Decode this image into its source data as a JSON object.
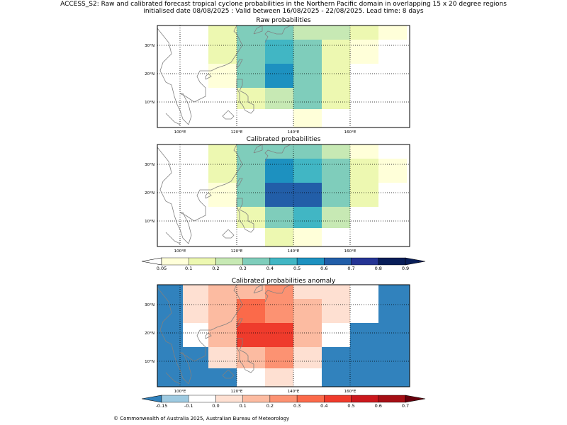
{
  "title_line1": "ACCESS_S2: Raw and calibrated forecast tropical cyclone probabilities in the Northern Pacific domain in overlapping 15 x 20 degree regions",
  "title_line2": "initialised date 08/08/2025 :  Valid between 16/08/2025 - 22/08/2025. Lead time: 8 days",
  "copyright": "© Commonwealth of Australia 2025, Australian Bureau of Meteorology",
  "colors": {
    "coast": "#808080",
    "prob_palette": [
      "#ffffd9",
      "#edf8b1",
      "#c7e9b4",
      "#7fcdbb",
      "#41b6c4",
      "#1d91c0",
      "#225ea8",
      "#253494",
      "#081d58"
    ],
    "prob_under": "#ffffff",
    "anom_palette": [
      "#9ecae1",
      "#ffffff",
      "#fee0d2",
      "#fcbba1",
      "#fc9272",
      "#fb6a4a",
      "#ef3b2c",
      "#cb181d",
      "#a50f15"
    ],
    "anom_under": "#3182bd",
    "anom_over": "#67000d",
    "prob_over": "#081d58"
  },
  "chart_data": [
    {
      "type": "heatmap",
      "title": "Raw probabilities",
      "x_tick_labels": [
        "100°E",
        "120°E",
        "140°E",
        "160°E"
      ],
      "y_tick_labels": [
        "10°N",
        "20°N",
        "30°N"
      ],
      "x_ticks": [
        100,
        120,
        140,
        160
      ],
      "y_ticks": [
        10,
        20,
        30
      ],
      "xlim": [
        92,
        181
      ],
      "ylim": [
        1,
        37
      ],
      "grid": true,
      "x_edges": [
        110,
        120,
        130,
        140,
        150,
        160,
        170,
        180
      ],
      "y_edges": [
        37,
        32,
        23.5,
        15,
        7.5,
        1
      ],
      "values": [
        [
          0.1,
          0.3,
          0.3,
          0.2,
          0.2,
          0.1,
          0.05
        ],
        [
          0.1,
          0.3,
          0.4,
          0.3,
          0.1,
          0.05,
          null
        ],
        [
          0.05,
          0.3,
          0.5,
          0.3,
          0.1,
          null,
          null
        ],
        [
          null,
          0.1,
          0.2,
          0.3,
          0.1,
          null,
          null
        ],
        [
          null,
          null,
          null,
          0.05,
          null,
          null,
          null
        ]
      ]
    },
    {
      "type": "heatmap",
      "title": "Calibrated probabilities",
      "x_tick_labels": [
        "100°E",
        "120°E",
        "140°E",
        "160°E"
      ],
      "y_tick_labels": [
        "10°N",
        "20°N",
        "30°N"
      ],
      "x_ticks": [
        100,
        120,
        140,
        160
      ],
      "y_ticks": [
        10,
        20,
        30
      ],
      "xlim": [
        92,
        181
      ],
      "ylim": [
        1,
        37
      ],
      "grid": true,
      "x_edges": [
        110,
        120,
        130,
        140,
        150,
        160,
        170,
        180
      ],
      "y_edges": [
        37,
        32,
        23.5,
        15,
        7.5,
        1
      ],
      "values": [
        [
          0.1,
          0.3,
          0.3,
          0.3,
          0.2,
          0.05,
          null
        ],
        [
          0.1,
          0.3,
          0.5,
          0.4,
          0.3,
          0.1,
          0.05
        ],
        [
          0.05,
          0.3,
          0.6,
          0.6,
          0.3,
          0.1,
          null
        ],
        [
          null,
          0.1,
          0.3,
          0.4,
          0.2,
          null,
          null
        ],
        [
          null,
          null,
          0.1,
          0.05,
          null,
          null,
          null
        ]
      ],
      "colorbar": {
        "tick_labels": [
          "0.05",
          "0.1",
          "0.2",
          "0.3",
          "0.4",
          "0.5",
          "0.6",
          "0.7",
          "0.8",
          "0.9"
        ],
        "bounds": [
          0.05,
          0.1,
          0.2,
          0.3,
          0.4,
          0.5,
          0.6,
          0.7,
          0.8,
          0.9
        ]
      }
    },
    {
      "type": "heatmap",
      "title": "Calibrated probabilities anomaly",
      "x_tick_labels": [
        "100°E",
        "120°E",
        "140°E",
        "160°E"
      ],
      "y_tick_labels": [
        "10°N",
        "20°N",
        "30°N"
      ],
      "x_ticks": [
        100,
        120,
        140,
        160
      ],
      "y_ticks": [
        10,
        20,
        30
      ],
      "xlim": [
        92,
        181
      ],
      "ylim": [
        1,
        37
      ],
      "grid": true,
      "x_edges": [
        92,
        101,
        110,
        120,
        130,
        140,
        150,
        160,
        170,
        181
      ],
      "y_edges": [
        37,
        32,
        23.5,
        15,
        7.5,
        1
      ],
      "values": [
        [
          -0.2,
          0.0,
          0.1,
          0.1,
          0.2,
          0.05,
          0.05,
          -0.1,
          -0.2
        ],
        [
          -0.2,
          0.0,
          0.1,
          0.3,
          0.2,
          0.1,
          0.0,
          -0.1,
          -0.2
        ],
        [
          -0.2,
          -0.1,
          0.1,
          0.4,
          0.4,
          0.1,
          -0.1,
          -0.2,
          -0.2
        ],
        [
          -0.2,
          -0.2,
          0.0,
          0.1,
          0.2,
          0.05,
          -0.2,
          -0.2,
          -0.2
        ],
        [
          -0.2,
          -0.2,
          -0.2,
          -0.1,
          0.0,
          -0.1,
          -0.2,
          -0.2,
          -0.2
        ]
      ],
      "colorbar": {
        "tick_labels": [
          "-0.15",
          "-0.1",
          "0.0",
          "0.1",
          "0.2",
          "0.3",
          "0.4",
          "0.5",
          "0.6",
          "0.7"
        ],
        "bounds": [
          -0.15,
          -0.1,
          0.0,
          0.1,
          0.2,
          0.3,
          0.4,
          0.5,
          0.6,
          0.7
        ]
      }
    }
  ]
}
